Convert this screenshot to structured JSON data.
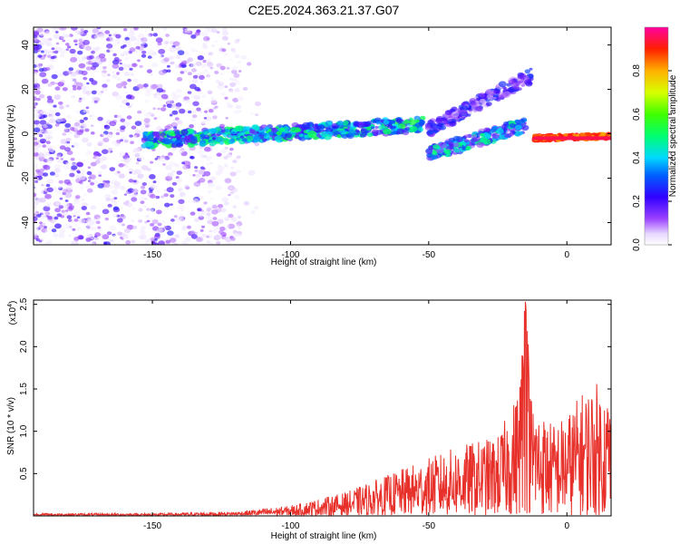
{
  "title": "C2E5.2024.363.21.37.G07",
  "chart_data": [
    {
      "type": "heatmap",
      "xlabel": "Height of straight line (km)",
      "ylabel": "Frequency (Hz)",
      "xlim": [
        -193,
        16
      ],
      "ylim": [
        -50,
        48
      ],
      "xticks": [
        -150,
        -100,
        -50,
        0
      ],
      "yticks": [
        -40,
        -20,
        0,
        20,
        40
      ],
      "colorbar": {
        "label": "Normalized spectral amplitude",
        "range": [
          0,
          1
        ],
        "ticks": [
          "0.0",
          "0.2",
          "0.4",
          "0.6",
          "0.8"
        ]
      },
      "features": [
        {
          "name": "noise",
          "x": [
            -193,
            -120
          ],
          "y": [
            -50,
            48
          ],
          "amplitude": [
            0.02,
            0.25
          ]
        },
        {
          "name": "main-trace",
          "x": [
            -153,
            -52
          ],
          "y_start": -3,
          "y_end": 4,
          "amplitude": [
            0.15,
            0.55
          ]
        },
        {
          "name": "lower-branch",
          "x": [
            -50,
            -15
          ],
          "y_start": -9,
          "y_end": 4,
          "amplitude": [
            0.1,
            0.5
          ]
        },
        {
          "name": "upper-branch",
          "x": [
            -50,
            -13
          ],
          "y_start": 2,
          "y_end": 26,
          "amplitude": [
            0.05,
            0.3
          ]
        },
        {
          "name": "strong-line",
          "x": [
            -12,
            16
          ],
          "y_start": -2,
          "y_end": -1,
          "amplitude": [
            0.8,
            0.95
          ]
        }
      ]
    },
    {
      "type": "line",
      "xlabel": "Height of straight line (km)",
      "ylabel": "SNR (10 * v/v)",
      "y_multiplier": "(x10",
      "y_exponent": "4",
      "xlim": [
        -193,
        16
      ],
      "ylim": [
        0,
        2.55
      ],
      "xticks": [
        -150,
        -100,
        -50,
        0
      ],
      "yticks": [
        "0.5",
        "1.0",
        "1.5",
        "2.0",
        "2.5"
      ],
      "color": "#e8302a",
      "envelope": {
        "x": [
          -193,
          -150,
          -120,
          -100,
          -80,
          -60,
          -40,
          -25,
          -18,
          -15,
          -13,
          -10,
          -5,
          0,
          5,
          10,
          16
        ],
        "max": [
          0.03,
          0.03,
          0.05,
          0.12,
          0.28,
          0.55,
          0.82,
          0.95,
          1.45,
          2.55,
          1.5,
          1.25,
          1.1,
          1.2,
          1.45,
          1.6,
          1.45
        ]
      }
    }
  ]
}
